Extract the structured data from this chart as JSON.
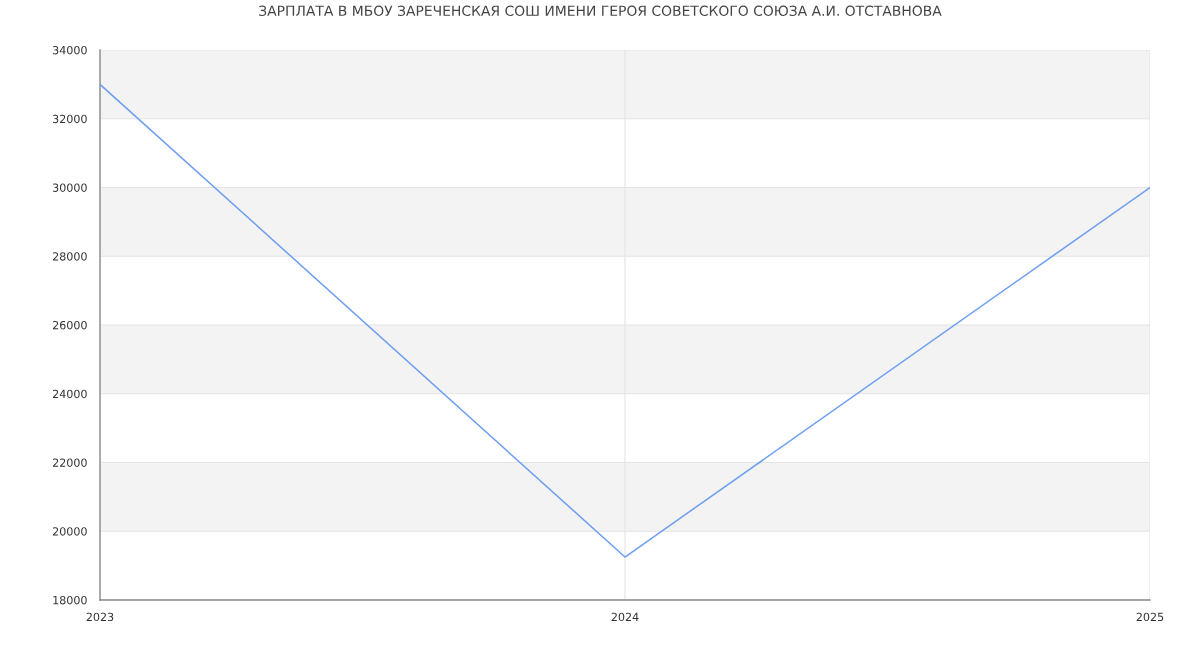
{
  "chart_data": {
    "type": "line",
    "title": "ЗАРПЛАТА В МБОУ ЗАРЕЧЕНСКАЯ СОШ ИМЕНИ ГЕРОЯ СОВЕТСКОГО СОЮЗА А.И. ОТСТАВНОВА",
    "x": [
      2023,
      2024,
      2025
    ],
    "series": [
      {
        "color": "#6e9ef2",
        "values": [
          33000,
          19250,
          30000
        ]
      }
    ],
    "xlim": [
      2023,
      2025
    ],
    "xticks": [
      2023,
      2024,
      2025
    ],
    "ylim": [
      18000,
      34000
    ],
    "yticks": [
      18000,
      20000,
      22000,
      24000,
      26000,
      28000,
      30000,
      32000,
      34000
    ],
    "grid": true,
    "bands": [
      {
        "axis": "y",
        "from": 20000,
        "to": 22000,
        "color": "#f3f3f3"
      },
      {
        "axis": "y",
        "from": 24000,
        "to": 26000,
        "color": "#f3f3f3"
      },
      {
        "axis": "y",
        "from": 28000,
        "to": 30000,
        "color": "#f3f3f3"
      },
      {
        "axis": "y",
        "from": 32000,
        "to": 34000,
        "color": "#f3f3f3"
      }
    ],
    "line_style": "solid"
  }
}
